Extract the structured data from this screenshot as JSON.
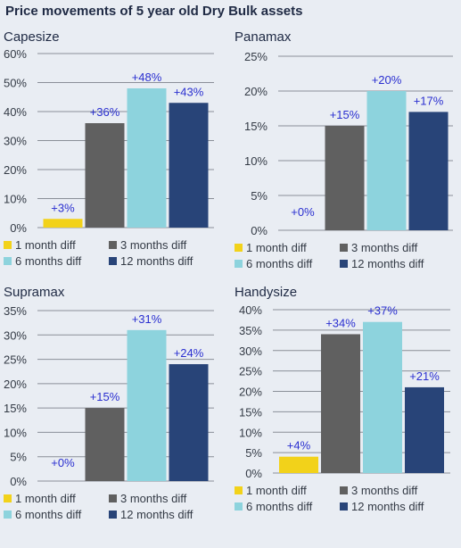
{
  "title": "Price movements of 5 year old Dry Bulk assets",
  "colors": {
    "1 month diff": "#f2d21a",
    "3 months diff": "#606060",
    "6 months diff": "#8dd3dd",
    "12 months diff": "#284478"
  },
  "chart_data": [
    {
      "type": "bar",
      "title": "Capesize",
      "categories": [
        "1 month diff",
        "3 months diff",
        "6 months diff",
        "12 months diff"
      ],
      "values": [
        3,
        36,
        48,
        43
      ],
      "data_labels": [
        "+3%",
        "+36%",
        "+48%",
        "+43%"
      ],
      "ylim": [
        0,
        60
      ],
      "yticks": [
        0,
        10,
        20,
        30,
        40,
        50,
        60
      ],
      "ytick_labels": [
        "0%",
        "10%",
        "20%",
        "30%",
        "40%",
        "50%",
        "60%"
      ],
      "grid": true,
      "legend": "bottom"
    },
    {
      "type": "bar",
      "title": "Panamax",
      "categories": [
        "1 month diff",
        "3 months diff",
        "6 months diff",
        "12 months diff"
      ],
      "values": [
        0,
        15,
        20,
        17
      ],
      "data_labels": [
        "+0%",
        "+15%",
        "+20%",
        "+17%"
      ],
      "ylim": [
        0,
        25
      ],
      "yticks": [
        0,
        5,
        10,
        15,
        20,
        25
      ],
      "ytick_labels": [
        "0%",
        "5%",
        "10%",
        "15%",
        "20%",
        "25%"
      ],
      "grid": true,
      "legend": "bottom"
    },
    {
      "type": "bar",
      "title": "Supramax",
      "categories": [
        "1 month diff",
        "3 months diff",
        "6 months diff",
        "12 months diff"
      ],
      "values": [
        0,
        15,
        31,
        24
      ],
      "data_labels": [
        "+0%",
        "+15%",
        "+31%",
        "+24%"
      ],
      "ylim": [
        0,
        35
      ],
      "yticks": [
        0,
        5,
        10,
        15,
        20,
        25,
        30,
        35
      ],
      "ytick_labels": [
        "0%",
        "5%",
        "10%",
        "15%",
        "20%",
        "25%",
        "30%",
        "35%"
      ],
      "grid": true,
      "legend": "bottom"
    },
    {
      "type": "bar",
      "title": "Handysize",
      "categories": [
        "1 month diff",
        "3 months diff",
        "6 months diff",
        "12 months diff"
      ],
      "values": [
        4,
        34,
        37,
        21
      ],
      "data_labels": [
        "+4%",
        "+34%",
        "+37%",
        "+21%"
      ],
      "ylim": [
        0,
        40
      ],
      "yticks": [
        0,
        5,
        10,
        15,
        20,
        25,
        30,
        35,
        40
      ],
      "ytick_labels": [
        "0%",
        "5%",
        "10%",
        "15%",
        "20%",
        "25%",
        "30%",
        "35%",
        "40%"
      ],
      "grid": true,
      "legend": "bottom"
    }
  ]
}
